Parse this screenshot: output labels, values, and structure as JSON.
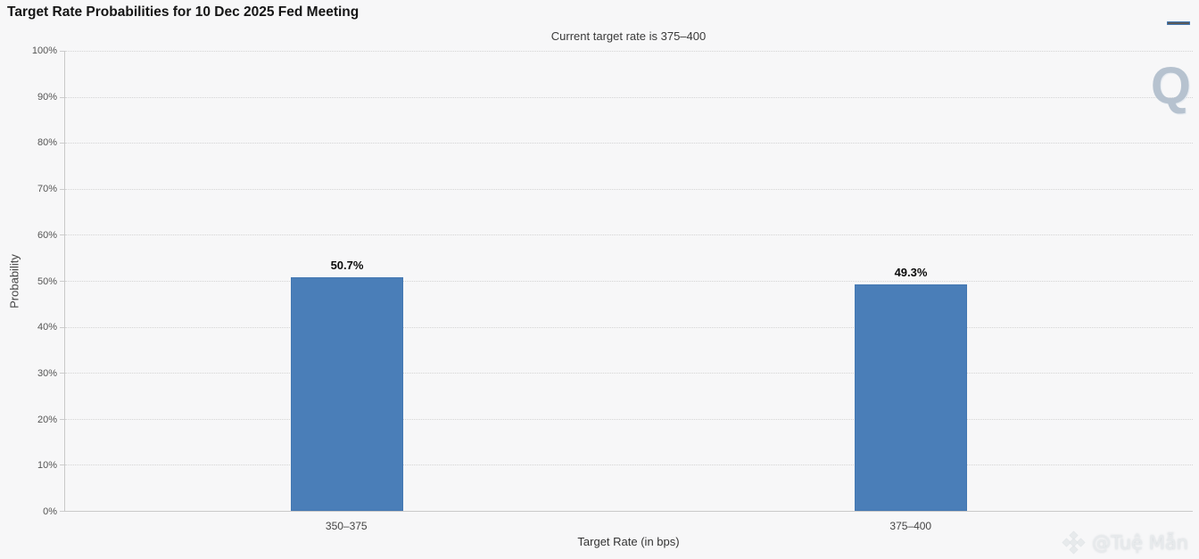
{
  "page": {
    "title": "Target Rate Probabilities for 10 Dec 2025 Fed Meeting",
    "subtitle": "Current target rate is 375–400"
  },
  "toolbar": {
    "menu_icon": "hamburger-menu-icon"
  },
  "chart_data": {
    "type": "bar",
    "title": "Target Rate Probabilities for 10 Dec 2025 Fed Meeting",
    "subtitle": "Current target rate is 375–400",
    "categories": [
      "350–375",
      "375–400"
    ],
    "values": [
      50.7,
      49.3
    ],
    "value_labels": [
      "50.7%",
      "49.3%"
    ],
    "xlabel": "Target Rate (in bps)",
    "ylabel": "Probability",
    "ylim": [
      0,
      100
    ],
    "ytick_step": 10,
    "ytick_suffix": "%",
    "grid": "horizontal-dotted",
    "legend": "none",
    "bar_color": "#4a7eb8"
  },
  "watermarks": {
    "q_logo": "Q",
    "credit_text": "@Tuệ Mẫn",
    "credit_icon": "binance-diamond-icon"
  },
  "colors": {
    "background": "#f7f7f8",
    "bar": "#4a7eb8",
    "gridline": "#d4d4d4",
    "axis_line": "#c9c9c9",
    "title_text": "#151515",
    "subtitle_text": "#3a3a3a",
    "tick_text": "#555555",
    "q_watermark": "#b6c2cf",
    "credit_watermark": "#e7eaec"
  }
}
